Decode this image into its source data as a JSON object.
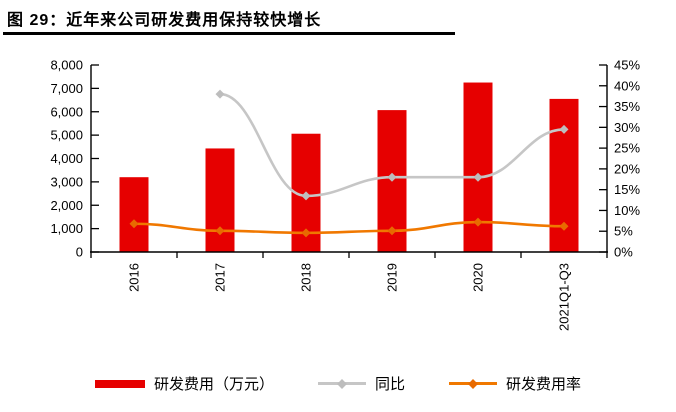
{
  "title": "图  29：近年来公司研发费用保持较快增长",
  "legend": [
    {
      "label": "研发费用（万元）",
      "swatch": "bar-swatch",
      "color": "#E60000"
    },
    {
      "label": "同比",
      "swatch": "line-swatch",
      "color": "#C6C6C6",
      "marker_color": "#BDBDBD"
    },
    {
      "label": "研发费用率",
      "swatch": "line-swatch",
      "color": "#F07800",
      "marker_color": "#E86A00"
    }
  ],
  "chart_data": {
    "type": "bar+line combo",
    "categories": [
      "2016",
      "2017",
      "2018",
      "2019",
      "2020",
      "2021Q1-Q3"
    ],
    "series": [
      {
        "name": "研发费用（万元）",
        "type": "bar",
        "axis": "left",
        "color": "#E60000",
        "values": [
          3200,
          4430,
          5060,
          6070,
          7250,
          6550
        ]
      },
      {
        "name": "同比",
        "type": "line",
        "axis": "right",
        "color": "#C6C6C6",
        "marker_color": "#BDBDBD",
        "values": [
          null,
          38,
          13.5,
          18,
          18,
          29.5
        ]
      },
      {
        "name": "研发费用率",
        "type": "line",
        "axis": "right",
        "color": "#F07800",
        "marker_color": "#E86A00",
        "values": [
          6.8,
          5.1,
          4.6,
          5.1,
          7.2,
          6.2
        ]
      }
    ],
    "left_axis": {
      "min": 0,
      "max": 8000,
      "step": 1000,
      "labels": [
        "0",
        "1,000",
        "2,000",
        "3,000",
        "4,000",
        "5,000",
        "6,000",
        "7,000",
        "8,000"
      ]
    },
    "right_axis": {
      "min": 0,
      "max": 45,
      "step": 5,
      "unit": "%",
      "labels": [
        "0%",
        "5%",
        "10%",
        "15%",
        "20%",
        "25%",
        "30%",
        "35%",
        "40%",
        "45%"
      ]
    },
    "grid": false,
    "legend_position": "bottom",
    "x_labels_rotated_deg": -90
  }
}
